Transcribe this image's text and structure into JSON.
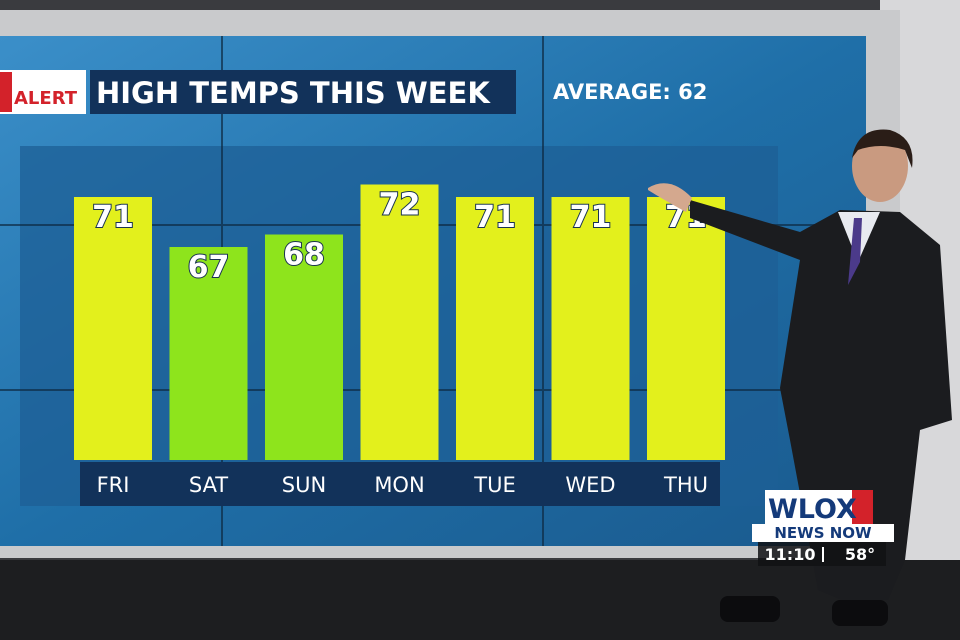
{
  "alert": "ALERT",
  "chart_data": {
    "type": "bar",
    "title": "HIGH TEMPS THIS WEEK",
    "subtitle": "AVERAGE: 62",
    "categories": [
      "FRI",
      "SAT",
      "SUN",
      "MON",
      "TUE",
      "WED",
      "THU"
    ],
    "values": [
      71,
      67,
      68,
      72,
      71,
      71,
      71
    ],
    "colors": [
      "#e3f01c",
      "#8ee41c",
      "#8ee41c",
      "#e3f01c",
      "#e3f01c",
      "#e3f01c",
      "#e3f01c"
    ]
  },
  "logo": {
    "station": "WLOX",
    "program": "NEWS NOW",
    "time": "11:10",
    "temperature": "58°"
  }
}
